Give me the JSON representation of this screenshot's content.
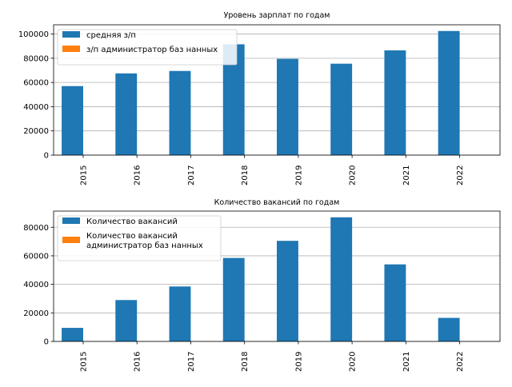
{
  "chart_data": [
    {
      "type": "bar",
      "title": "Уровень зарплат по годам",
      "categories": [
        "2015",
        "2016",
        "2017",
        "2018",
        "2019",
        "2020",
        "2021",
        "2022"
      ],
      "series": [
        {
          "name": "средняя з/п",
          "color": "#1f77b4",
          "values": [
            57000,
            67500,
            69500,
            91500,
            79500,
            75500,
            86500,
            102500
          ]
        },
        {
          "name": "з/п администратор баз нанных",
          "color": "#ff7f0e",
          "values": [
            0,
            0,
            0,
            0,
            0,
            0,
            0,
            0
          ]
        }
      ],
      "yticks": [
        "0",
        "20000",
        "40000",
        "60000",
        "80000",
        "100000"
      ],
      "ylim": [
        0,
        107625
      ],
      "grid": "y",
      "legend": "top-left"
    },
    {
      "type": "bar",
      "title": "Количество вакансий по годам",
      "categories": [
        "2015",
        "2016",
        "2017",
        "2018",
        "2019",
        "2020",
        "2021",
        "2022"
      ],
      "series": [
        {
          "name": "Количество вакансий",
          "color": "#1f77b4",
          "values": [
            9500,
            29000,
            38500,
            58500,
            70500,
            87000,
            54000,
            16500
          ]
        },
        {
          "name": "Количество вакансий\nадминистратор баз нанных",
          "color": "#ff7f0e",
          "values": [
            0,
            0,
            0,
            0,
            0,
            0,
            0,
            0
          ]
        }
      ],
      "yticks": [
        "0",
        "20000",
        "40000",
        "60000",
        "80000"
      ],
      "ylim": [
        0,
        91350
      ],
      "grid": "y",
      "legend": "top-left"
    }
  ]
}
